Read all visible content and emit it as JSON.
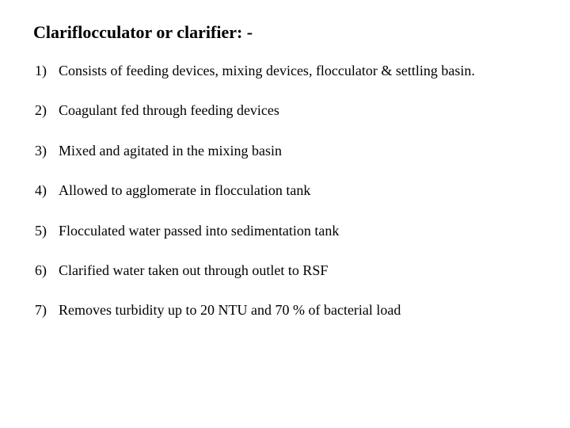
{
  "title_fontsize": 22,
  "item_fontsize": 18,
  "background_color": "#ffffff",
  "text_color": "#000000",
  "font_family": "Times New Roman",
  "title": "Clariflocculator or clarifier: -",
  "items": [
    "Consists of feeding devices, mixing devices, flocculator & settling basin.",
    "Coagulant fed through feeding devices",
    "Mixed and agitated in the mixing basin",
    "Allowed to agglomerate in flocculation tank",
    "Flocculated water passed into sedimentation tank",
    "Clarified water taken out through outlet to RSF",
    "Removes turbidity up to 20 NTU and 70 % of bacterial load"
  ]
}
